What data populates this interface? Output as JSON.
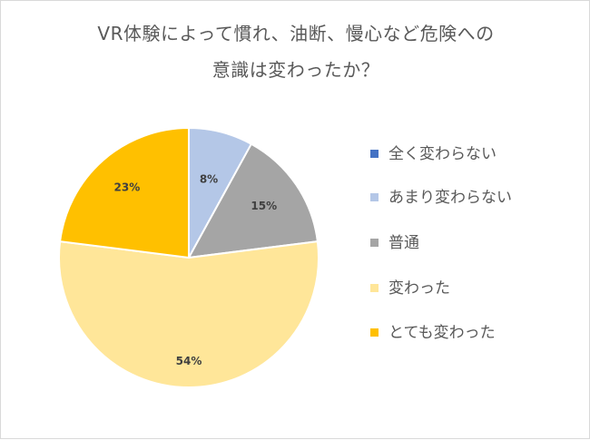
{
  "chart_data": {
    "type": "pie",
    "title_lines": [
      "VR体験によって慣れ、油断、慢心など危険への",
      "意識は変わったか？"
    ],
    "categories": [
      "全く変わらない",
      "あまり変わらない",
      "普通",
      "変わった",
      "とても変わった"
    ],
    "values": [
      0,
      8,
      15,
      54,
      23
    ],
    "data_labels": [
      "",
      "8%",
      "15%",
      "54%",
      "23%"
    ],
    "colors": [
      "#4472c4",
      "#b4c7e7",
      "#a5a5a5",
      "#ffe699",
      "#ffc000"
    ],
    "legend_position": "right",
    "start_angle_deg": 0,
    "direction": "clockwise"
  }
}
